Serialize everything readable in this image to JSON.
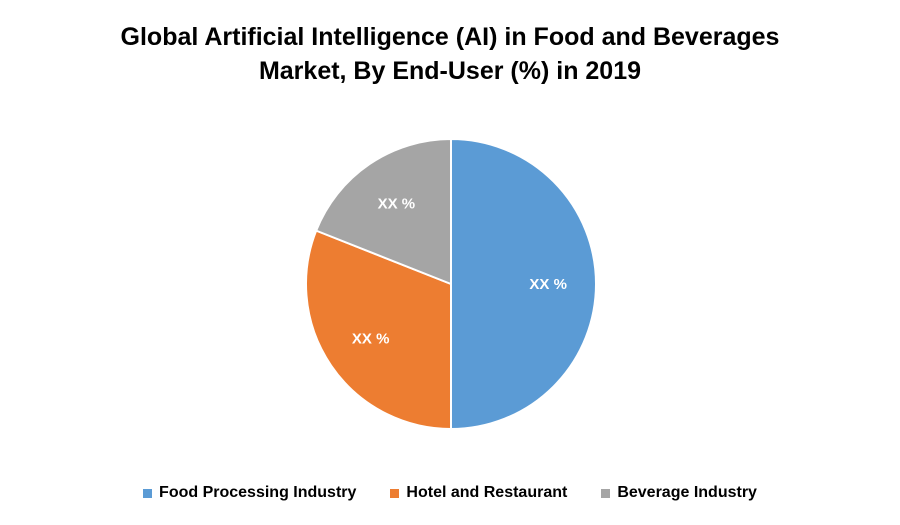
{
  "chart_data": {
    "type": "pie",
    "title_lines": [
      "Global Artificial Intelligence (AI) in Food and Beverages",
      "Market, By End-User (%) in 2019"
    ],
    "slices": [
      {
        "name": "Food Processing Industry",
        "value": 50,
        "label": "XX %",
        "color": "#5b9bd5"
      },
      {
        "name": "Hotel and Restaurant",
        "value": 31,
        "label": "XX %",
        "color": "#ed7d31"
      },
      {
        "name": "Beverage Industry",
        "value": 19,
        "label": "XX %",
        "color": "#a5a5a5"
      }
    ],
    "legend_position": "bottom"
  }
}
